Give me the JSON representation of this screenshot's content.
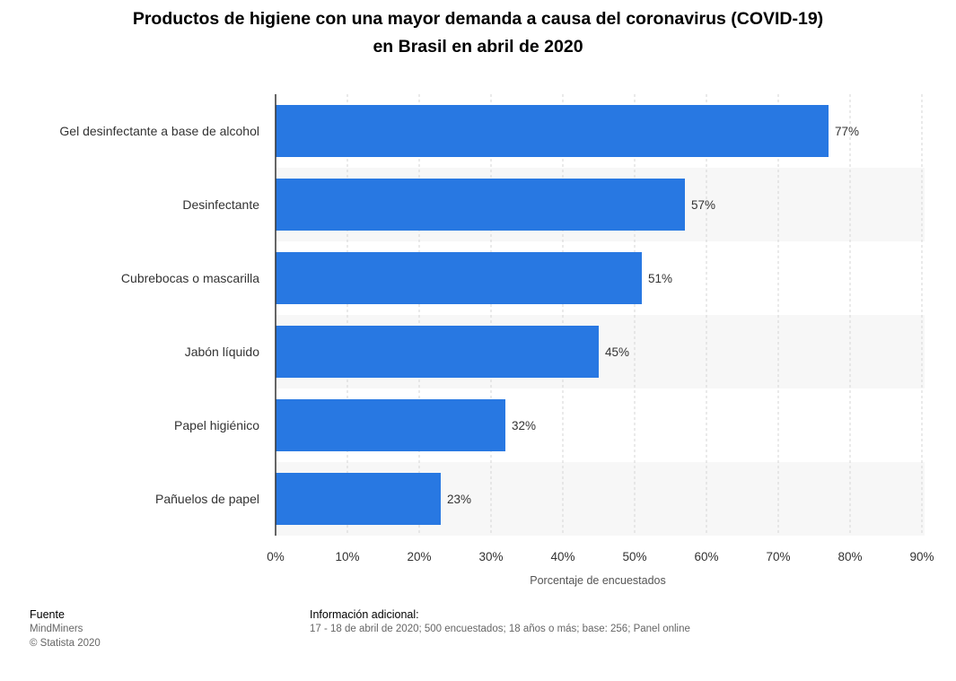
{
  "chart_data": {
    "type": "bar",
    "orientation": "horizontal",
    "title": "Productos de higiene con una mayor demanda a causa del coronavirus (COVID-19) en Brasil en abril de 2020",
    "title_lines": [
      "Productos de higiene con una mayor demanda a causa del coronavirus (COVID-19)",
      "en Brasil en abril de 2020"
    ],
    "categories": [
      "Gel desinfectante a base de alcohol",
      "Desinfectante",
      "Cubrebocas o mascarilla",
      "Jabón líquido",
      "Papel higiénico",
      "Pañuelos de papel"
    ],
    "values": [
      77,
      57,
      51,
      45,
      32,
      23
    ],
    "value_labels": [
      "77%",
      "57%",
      "51%",
      "45%",
      "32%",
      "23%"
    ],
    "xlabel": "Porcentaje de encuestados",
    "ylabel": "",
    "xlim": [
      0,
      90
    ],
    "x_ticks": [
      0,
      10,
      20,
      30,
      40,
      50,
      60,
      70,
      80,
      90
    ],
    "x_tick_labels": [
      "0%",
      "10%",
      "20%",
      "30%",
      "40%",
      "50%",
      "60%",
      "70%",
      "80%",
      "90%"
    ],
    "grid": true,
    "bar_color": "#2878e2",
    "band_color": "#f7f7f7"
  },
  "footer": {
    "source_heading": "Fuente",
    "source_name": "MindMiners",
    "copyright": "© Statista 2020",
    "info_heading": "Información adicional:",
    "info_text": "17 - 18 de abril de 2020; 500 encuestados; 18 años o más; base: 256; Panel online"
  }
}
